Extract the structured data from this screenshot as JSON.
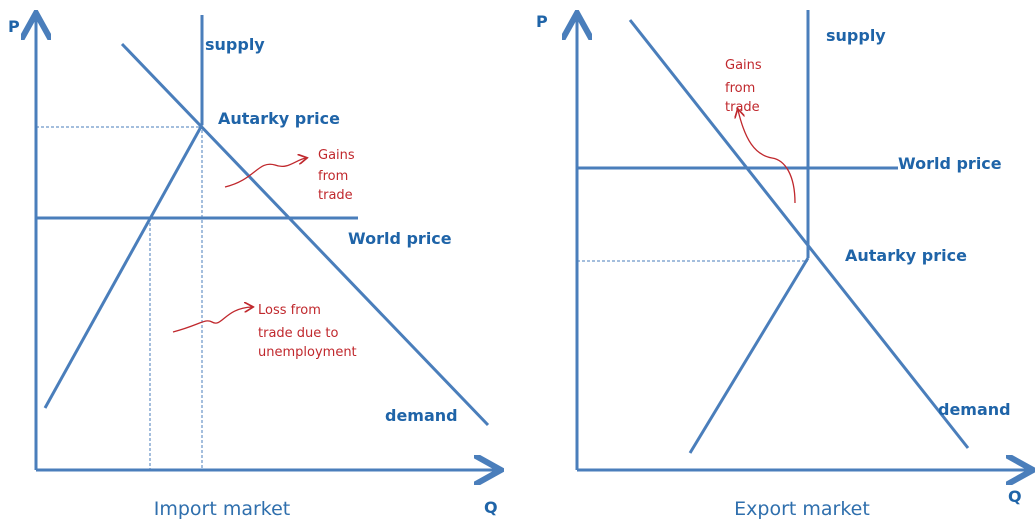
{
  "panels": [
    {
      "axis_y": "P",
      "axis_x": "Q",
      "supply": "supply",
      "autarky_price": "Autarky price",
      "world_price": "World price",
      "demand": "demand",
      "title": "Import market",
      "gains_note": [
        "Gains",
        "from",
        "trade"
      ],
      "loss_note": [
        "Loss from",
        "trade due to",
        "unemployment"
      ]
    },
    {
      "axis_y": "P",
      "axis_x": "Q",
      "supply": "supply",
      "autarky_price": "Autarky price",
      "world_price": "World price",
      "demand": "demand",
      "title": "Export market",
      "gains_note": [
        "Gains",
        "from",
        "trade"
      ]
    }
  ]
}
